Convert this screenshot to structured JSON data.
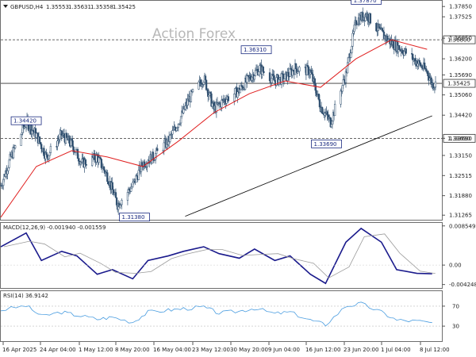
{
  "header": {
    "symbol": "GBPUSD,H4",
    "open": "1.35553",
    "high": "1.35631",
    "low": "1.35358",
    "close": "1.35425"
  },
  "watermark": "Action Forex",
  "colors": {
    "candle": "#2f4f6f",
    "ma": "#e02020",
    "trendline": "#111111",
    "level": "#333333",
    "macd_main": "#1a1a8c",
    "macd_signal": "#9a9a9a",
    "rsi": "#4a9de0",
    "label_border": "#1a2a80"
  },
  "price_axis": {
    "ticks": [
      "1.37850",
      "1.37525",
      "1.36850",
      "1.36200",
      "1.35690",
      "1.35060",
      "1.34420",
      "1.33690",
      "1.33150",
      "1.32515",
      "1.31880",
      "1.31265"
    ],
    "current_price": "1.35425",
    "ylim": [
      1.3112,
      1.3803
    ]
  },
  "levels": [
    {
      "price": "1.36800",
      "style": "dashed"
    },
    {
      "price": "1.33690",
      "style": "dashed"
    },
    {
      "price": "1.35425",
      "style": "solid"
    }
  ],
  "annotations": [
    {
      "text": "1.37870",
      "price": 1.3787,
      "date": "2025-06-27 04:00"
    },
    {
      "text": "1.36310",
      "price": 1.3631,
      "date": "2025-06-05 12:00"
    },
    {
      "text": "1.34420",
      "price": 1.3442,
      "date": "2025-04-21 04:00"
    },
    {
      "text": "1.33690",
      "price": 1.3369,
      "date": "2025-06-19 08:00"
    },
    {
      "text": "1.31380",
      "price": 1.3138,
      "date": "2025-05-12 12:00"
    }
  ],
  "trendline": {
    "start": {
      "date": "2025-05-22 08:00",
      "price": 1.3123
    },
    "end": {
      "date": "2025-07-10 00:00",
      "price": 1.344
    }
  },
  "time_axis": {
    "labels": [
      "16 Apr 2025",
      "24 Apr 04:00",
      "1 May 12:00",
      "8 May 20:00",
      "16 May 04:00",
      "23 May 12:00",
      "30 May 20:00",
      "9 Jun 04:00",
      "16 Jun 12:00",
      "23 Jun 20:00",
      "1 Jul 04:00",
      "8 Jul 12:00"
    ]
  },
  "macd": {
    "label": "MACD(12,26,9) -0.001940 -0.001559",
    "ticks": [
      "0.008549",
      "0.00",
      "-0.004248"
    ]
  },
  "rsi": {
    "label": "RSI(14) 36.9142",
    "ticks": [
      "70",
      "30"
    ]
  },
  "chart_data": [
    {
      "type": "candlestick",
      "title": "GBPUSD,H4",
      "xlabel": "",
      "ylabel": "",
      "ylim": [
        1.3112,
        1.3803
      ],
      "grid": false,
      "series": [
        {
          "x": [
            "2025-04-16",
            "2025-04-18",
            "2025-04-21",
            "2025-04-23",
            "2025-04-25",
            "2025-04-28",
            "2025-04-30",
            "2025-05-02",
            "2025-05-05",
            "2025-05-07",
            "2025-05-09",
            "2025-05-12",
            "2025-05-14",
            "2025-05-16",
            "2025-05-19",
            "2025-05-21",
            "2025-05-23",
            "2025-05-26",
            "2025-05-28",
            "2025-05-30",
            "2025-06-02",
            "2025-06-04",
            "2025-06-06",
            "2025-06-09",
            "2025-06-11",
            "2025-06-13",
            "2025-06-16",
            "2025-06-18",
            "2025-06-20",
            "2025-06-23",
            "2025-06-25",
            "2025-06-27",
            "2025-06-30",
            "2025-07-02",
            "2025-07-04",
            "2025-07-07",
            "2025-07-09",
            "2025-07-10"
          ],
          "values": [
            1.322,
            1.331,
            1.342,
            1.338,
            1.331,
            1.338,
            1.335,
            1.329,
            1.331,
            1.325,
            1.316,
            1.322,
            1.329,
            1.331,
            1.336,
            1.342,
            1.349,
            1.356,
            1.346,
            1.349,
            1.352,
            1.356,
            1.359,
            1.355,
            1.356,
            1.359,
            1.358,
            1.347,
            1.342,
            1.357,
            1.374,
            1.376,
            1.37,
            1.367,
            1.365,
            1.361,
            1.358,
            1.354
          ]
        },
        {
          "name": "MA",
          "x": [
            "2025-04-16",
            "2025-04-23",
            "2025-04-30",
            "2025-05-07",
            "2025-05-14",
            "2025-05-21",
            "2025-05-28",
            "2025-06-04",
            "2025-06-11",
            "2025-06-18",
            "2025-06-25",
            "2025-07-02",
            "2025-07-09"
          ],
          "values": [
            1.312,
            1.328,
            1.333,
            1.331,
            1.328,
            1.336,
            1.345,
            1.351,
            1.355,
            1.353,
            1.362,
            1.368,
            1.365
          ]
        }
      ]
    },
    {
      "type": "line",
      "title": "MACD(12,26,9) -0.001940 -0.001559",
      "ylim": [
        -0.005,
        0.0092
      ],
      "series": [
        {
          "x": [
            "2025-04-16",
            "2025-04-21",
            "2025-04-24",
            "2025-04-28",
            "2025-05-01",
            "2025-05-05",
            "2025-05-08",
            "2025-05-12",
            "2025-05-15",
            "2025-05-19",
            "2025-05-22",
            "2025-05-26",
            "2025-05-29",
            "2025-06-02",
            "2025-06-05",
            "2025-06-09",
            "2025-06-12",
            "2025-06-16",
            "2025-06-19",
            "2025-06-23",
            "2025-06-26",
            "2025-06-30",
            "2025-07-03",
            "2025-07-07",
            "2025-07-10"
          ],
          "values": [
            0.004,
            0.007,
            0.001,
            0.003,
            0.002,
            -0.002,
            -0.001,
            -0.003,
            0.001,
            0.002,
            0.003,
            0.004,
            0.0025,
            0.0015,
            0.0035,
            0.001,
            0.002,
            -0.002,
            -0.004,
            0.005,
            0.008,
            0.005,
            -0.001,
            -0.0018,
            -0.0019
          ]
        }
      ]
    },
    {
      "type": "line",
      "title": "RSI(14) 36.9142",
      "ylim": [
        0,
        100
      ],
      "series": [
        {
          "x": [
            "2025-04-16",
            "2025-04-21",
            "2025-04-24",
            "2025-04-28",
            "2025-05-01",
            "2025-05-05",
            "2025-05-08",
            "2025-05-12",
            "2025-05-15",
            "2025-05-19",
            "2025-05-22",
            "2025-05-26",
            "2025-05-29",
            "2025-06-02",
            "2025-06-05",
            "2025-06-09",
            "2025-06-12",
            "2025-06-16",
            "2025-06-19",
            "2025-06-23",
            "2025-06-26",
            "2025-06-30",
            "2025-07-03",
            "2025-07-07",
            "2025-07-10"
          ],
          "values": [
            62,
            71,
            50,
            58,
            52,
            44,
            48,
            38,
            58,
            62,
            65,
            68,
            56,
            60,
            66,
            55,
            58,
            42,
            33,
            70,
            75,
            58,
            42,
            40,
            37
          ]
        }
      ]
    }
  ]
}
